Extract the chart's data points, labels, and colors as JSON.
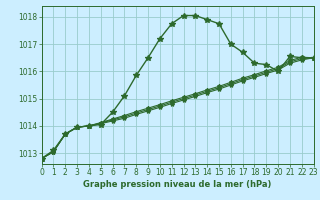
{
  "title": "Graphe pression niveau de la mer (hPa)",
  "background_color": "#cceeff",
  "grid_color": "#99cccc",
  "line_color": "#2d6a2d",
  "xlim": [
    0,
    23
  ],
  "ylim": [
    1012.6,
    1018.4
  ],
  "yticks": [
    1013,
    1014,
    1015,
    1016,
    1017,
    1018
  ],
  "xticks": [
    0,
    1,
    2,
    3,
    4,
    5,
    6,
    7,
    8,
    9,
    10,
    11,
    12,
    13,
    14,
    15,
    16,
    17,
    18,
    19,
    20,
    21,
    22,
    23
  ],
  "series_main": [
    1012.8,
    1013.1,
    1013.7,
    1013.95,
    1014.0,
    1014.05,
    1014.5,
    1015.1,
    1015.85,
    1016.5,
    1017.2,
    1017.75,
    1018.05,
    1018.05,
    1017.9,
    1017.75,
    1017.0,
    1016.7,
    1016.3,
    1016.25,
    1016.0,
    1016.55,
    1016.5,
    1016.5
  ],
  "series_linear": [
    [
      1012.8,
      1013.05,
      1013.7,
      1013.95,
      1014.0,
      1014.08,
      1014.18,
      1014.28,
      1014.42,
      1014.55,
      1014.68,
      1014.82,
      1014.95,
      1015.08,
      1015.22,
      1015.35,
      1015.5,
      1015.65,
      1015.78,
      1015.92,
      1016.05,
      1016.3,
      1016.42,
      1016.5
    ],
    [
      1012.8,
      1013.05,
      1013.7,
      1013.95,
      1014.0,
      1014.1,
      1014.22,
      1014.33,
      1014.47,
      1014.6,
      1014.73,
      1014.87,
      1015.0,
      1015.13,
      1015.27,
      1015.4,
      1015.55,
      1015.7,
      1015.83,
      1015.97,
      1016.1,
      1016.35,
      1016.47,
      1016.5
    ],
    [
      1012.8,
      1013.05,
      1013.7,
      1013.95,
      1014.0,
      1014.12,
      1014.25,
      1014.38,
      1014.52,
      1014.65,
      1014.78,
      1014.92,
      1015.05,
      1015.18,
      1015.32,
      1015.45,
      1015.6,
      1015.75,
      1015.88,
      1016.02,
      1016.15,
      1016.4,
      1016.52,
      1016.5
    ]
  ],
  "marker_main": "*",
  "marker_linear": "*",
  "marker_size_main": 4,
  "marker_size_linear": 3,
  "linewidth_main": 1.0,
  "linewidth_linear": 0.8,
  "title_fontsize": 6.0,
  "tick_fontsize": 5.5
}
